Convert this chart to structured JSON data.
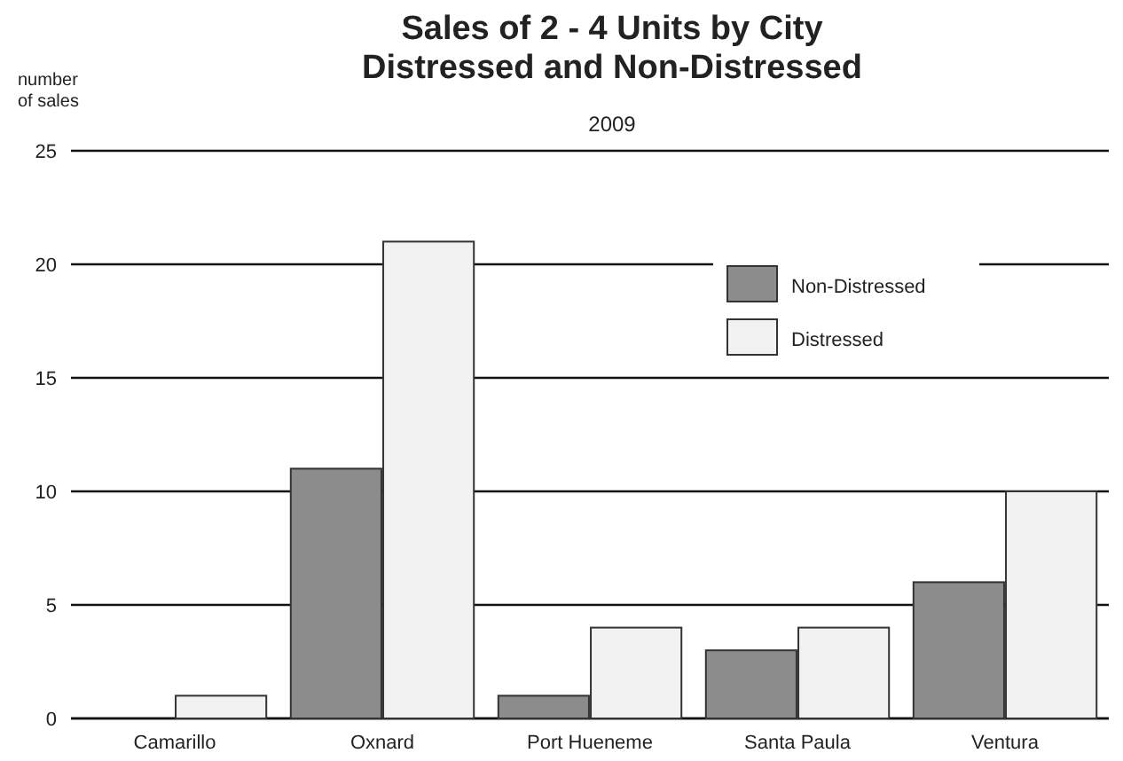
{
  "chart_data": {
    "type": "bar",
    "title": "Sales of 2 - 4 Units by City\nDistressed and Non-Distressed",
    "subtitle": "2009",
    "ylabel": "number\nof sales",
    "categories": [
      "Camarillo",
      "Oxnard",
      "Port Hueneme",
      "Santa Paula",
      "Ventura"
    ],
    "series": [
      {
        "name": "Non-Distressed",
        "color": "#8c8c8c",
        "values": [
          0,
          11,
          1,
          3,
          6
        ]
      },
      {
        "name": "Distressed",
        "color": "#f2f2f2",
        "values": [
          1,
          21,
          4,
          4,
          10
        ]
      }
    ],
    "ylim": [
      0,
      25
    ],
    "yticks": [
      0,
      5,
      10,
      15,
      20,
      25
    ],
    "grid": "y",
    "legend": "top right"
  }
}
